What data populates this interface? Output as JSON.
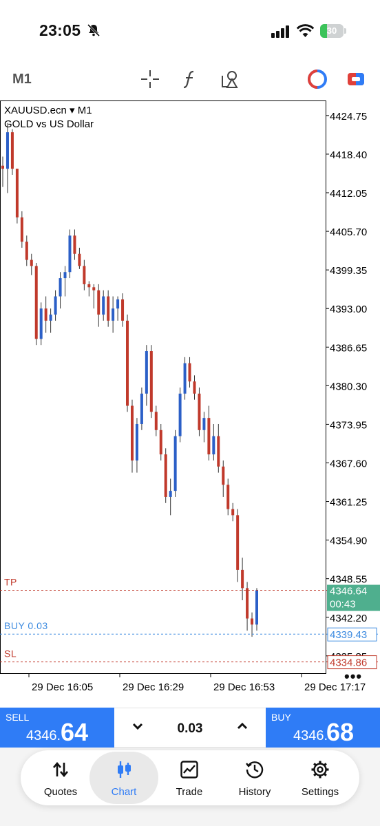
{
  "status_bar": {
    "time": "23:05",
    "battery": "30"
  },
  "toolbar": {
    "timeframe": "M1"
  },
  "chart_data": {
    "type": "candlestick",
    "symbol_line": "XAUUSD.ecn ▾ M1",
    "description": "GOLD vs US Dollar",
    "y_ticks": [
      "4424.75",
      "4418.40",
      "4412.05",
      "4405.70",
      "4399.35",
      "4393.00",
      "4386.65",
      "4380.30",
      "4373.95",
      "4367.60",
      "4361.25",
      "4354.90",
      "4348.55",
      "4342.20",
      "4335.85"
    ],
    "x_ticks": [
      "29 Dec 16:05",
      "29 Dec 16:29",
      "29 Dec 16:53",
      "29 Dec 17:17"
    ],
    "ylim": [
      4333,
      4427
    ],
    "levels": [
      {
        "label": "TP",
        "price": 4346.64,
        "color": "#c0392b"
      },
      {
        "label": "BUY 0.03",
        "price": 4339.43,
        "color": "#3d8be0"
      },
      {
        "label": "SL",
        "price": 4334.86,
        "color": "#c0392b"
      }
    ],
    "current_price": "4346.64",
    "countdown": "00:43",
    "buy_level_tag": "4339.43",
    "sl_level_tag": "4334.86",
    "colors": {
      "bull": "#2b5fc7",
      "bear": "#c0392b"
    },
    "candles": [
      [
        4416.5,
        4418,
        4413,
        4416
      ],
      [
        4416,
        4423.5,
        4412,
        4422
      ],
      [
        4422,
        4422.5,
        4415,
        4416
      ],
      [
        4416,
        4416,
        4407,
        4408
      ],
      [
        4408,
        4409,
        4403,
        4404
      ],
      [
        4404,
        4405,
        4400,
        4401
      ],
      [
        4401,
        4402,
        4398.5,
        4400
      ],
      [
        4400,
        4400.5,
        4387,
        4388
      ],
      [
        4388,
        4394,
        4387,
        4393
      ],
      [
        4393,
        4395,
        4389,
        4391
      ],
      [
        4391,
        4393,
        4389,
        4392
      ],
      [
        4392,
        4396,
        4391,
        4395
      ],
      [
        4395,
        4399,
        4393,
        4398
      ],
      [
        4398,
        4400,
        4395,
        4399
      ],
      [
        4399,
        4406,
        4398,
        4405
      ],
      [
        4405,
        4406,
        4401,
        4402
      ],
      [
        4402,
        4403,
        4399.5,
        4400
      ],
      [
        4400,
        4401,
        4396,
        4397
      ],
      [
        4397,
        4397.5,
        4395,
        4396.5
      ],
      [
        4396.5,
        4397,
        4393,
        4396
      ],
      [
        4396,
        4397,
        4390,
        4392
      ],
      [
        4392,
        4396,
        4391,
        4395
      ],
      [
        4395,
        4396,
        4390,
        4391
      ],
      [
        4391,
        4395,
        4389,
        4393
      ],
      [
        4393,
        4395,
        4391,
        4394.5
      ],
      [
        4394.5,
        4395.5,
        4390,
        4391
      ],
      [
        4391,
        4392,
        4376,
        4377
      ],
      [
        4377,
        4378,
        4366,
        4368
      ],
      [
        4368,
        4375,
        4366,
        4374
      ],
      [
        4374,
        4380,
        4373,
        4379
      ],
      [
        4379,
        4387,
        4377,
        4386
      ],
      [
        4386,
        4387,
        4375,
        4376
      ],
      [
        4376,
        4377,
        4372,
        4373
      ],
      [
        4373,
        4374,
        4368,
        4369
      ],
      [
        4369,
        4370,
        4361,
        4362
      ],
      [
        4362,
        4365,
        4359,
        4363
      ],
      [
        4363,
        4373,
        4362,
        4372
      ],
      [
        4372,
        4380,
        4371,
        4379
      ],
      [
        4379,
        4385,
        4378,
        4384
      ],
      [
        4384,
        4385,
        4380,
        4381
      ],
      [
        4381,
        4382,
        4378,
        4379
      ],
      [
        4379,
        4380,
        4372,
        4373
      ],
      [
        4373,
        4376,
        4371,
        4375
      ],
      [
        4375,
        4377,
        4368,
        4369
      ],
      [
        4369,
        4374,
        4368,
        4372
      ],
      [
        4372,
        4374,
        4366,
        4367
      ],
      [
        4367,
        4368,
        4362,
        4364
      ],
      [
        4364,
        4365,
        4359,
        4360
      ],
      [
        4360,
        4361,
        4358,
        4359
      ],
      [
        4359,
        4360,
        4348,
        4350
      ],
      [
        4350,
        4352,
        4345,
        4347
      ],
      [
        4347,
        4348,
        4340,
        4342
      ],
      [
        4342,
        4343,
        4339,
        4341
      ],
      [
        4341,
        4347,
        4340,
        4346.64
      ]
    ]
  },
  "trade_bar": {
    "sell_label": "SELL",
    "sell_price_small": "4346.",
    "sell_price_big": "64",
    "volume": "0.03",
    "buy_label": "BUY",
    "buy_price_small": "4346.",
    "buy_price_big": "68"
  },
  "tabs": [
    {
      "label": "Quotes",
      "icon": "quotes-arrows-icon"
    },
    {
      "label": "Chart",
      "icon": "candles-icon"
    },
    {
      "label": "Trade",
      "icon": "trade-chart-icon"
    },
    {
      "label": "History",
      "icon": "history-clock-icon"
    },
    {
      "label": "Settings",
      "icon": "gear-icon"
    }
  ],
  "active_tab": "Chart"
}
